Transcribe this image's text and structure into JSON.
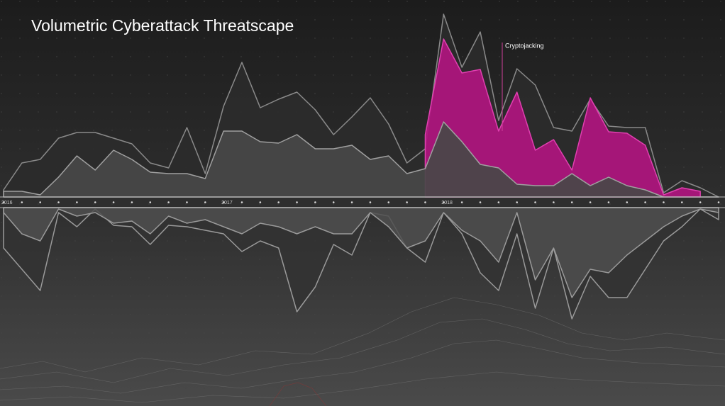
{
  "chart_data": [
    {
      "type": "area",
      "title": "Volumetric Cyberattack Threatscape",
      "categories": [
        "2016",
        null,
        null,
        null,
        null,
        null,
        null,
        null,
        null,
        null,
        null,
        null,
        "2017",
        null,
        null,
        null,
        null,
        null,
        null,
        null,
        null,
        null,
        null,
        null,
        "2018",
        null,
        null,
        null,
        null,
        null,
        null,
        null,
        null,
        null,
        null,
        null,
        null,
        null,
        null,
        null
      ],
      "ylim": [
        0,
        250
      ],
      "series": [
        {
          "color": "#2b2b2b",
          "values": [
            10,
            48,
            53,
            83,
            91,
            91,
            83,
            75,
            48,
            41,
            98,
            33,
            128,
            190,
            126,
            138,
            148,
            123,
            88,
            113,
            140,
            103,
            48,
            68,
            258,
            183,
            233,
            108,
            181,
            158,
            98,
            93,
            138,
            100,
            98,
            98,
            6,
            23,
            13,
            0
          ]
        },
        {
          "name": "Cryptojacking",
          "color": "#b0157f",
          "values": [
            null,
            null,
            null,
            null,
            null,
            null,
            null,
            null,
            null,
            null,
            null,
            null,
            null,
            null,
            null,
            null,
            null,
            null,
            null,
            null,
            null,
            null,
            null,
            88,
            223,
            175,
            180,
            93,
            148,
            66,
            81,
            38,
            140,
            92,
            90,
            73,
            3,
            13,
            8,
            null
          ]
        },
        {
          "color": "#484848",
          "values": [
            8,
            8,
            3,
            28,
            58,
            38,
            66,
            53,
            35,
            33,
            33,
            26,
            93,
            93,
            78,
            76,
            88,
            68,
            68,
            73,
            53,
            58,
            33,
            40,
            106,
            78,
            46,
            41,
            18,
            16,
            16,
            33,
            16,
            28,
            16,
            10,
            0,
            0,
            0,
            0
          ]
        }
      ]
    },
    {
      "type": "area",
      "ylim": [
        -180,
        0
      ],
      "series": [
        {
          "color": "#333333",
          "values": [
            -57,
            -87,
            -117,
            -7,
            -27,
            -2,
            -25,
            -27,
            -52,
            -25,
            -27,
            -32,
            -37,
            -62,
            -47,
            -57,
            -147,
            -112,
            -52,
            -67,
            -7,
            -12,
            -57,
            -77,
            -7,
            -37,
            -92,
            -117,
            -37,
            -142,
            -57,
            -157,
            -97,
            -127,
            -127,
            -87,
            -47,
            -27,
            -2,
            -17
          ]
        },
        {
          "color": "#4f4f4f",
          "values": [
            -7,
            -37,
            -47,
            -2,
            -12,
            -7,
            -22,
            -19,
            -37,
            -12,
            -22,
            -17,
            -27,
            -37,
            -22,
            -27,
            -37,
            -27,
            -37,
            -37,
            -7,
            -27,
            -57,
            -47,
            -7,
            -32,
            -47,
            -77,
            -7,
            -102,
            -57,
            -127,
            -87,
            -92,
            -67,
            -47,
            -27,
            -12,
            -2,
            -7
          ]
        }
      ]
    }
  ]
}
